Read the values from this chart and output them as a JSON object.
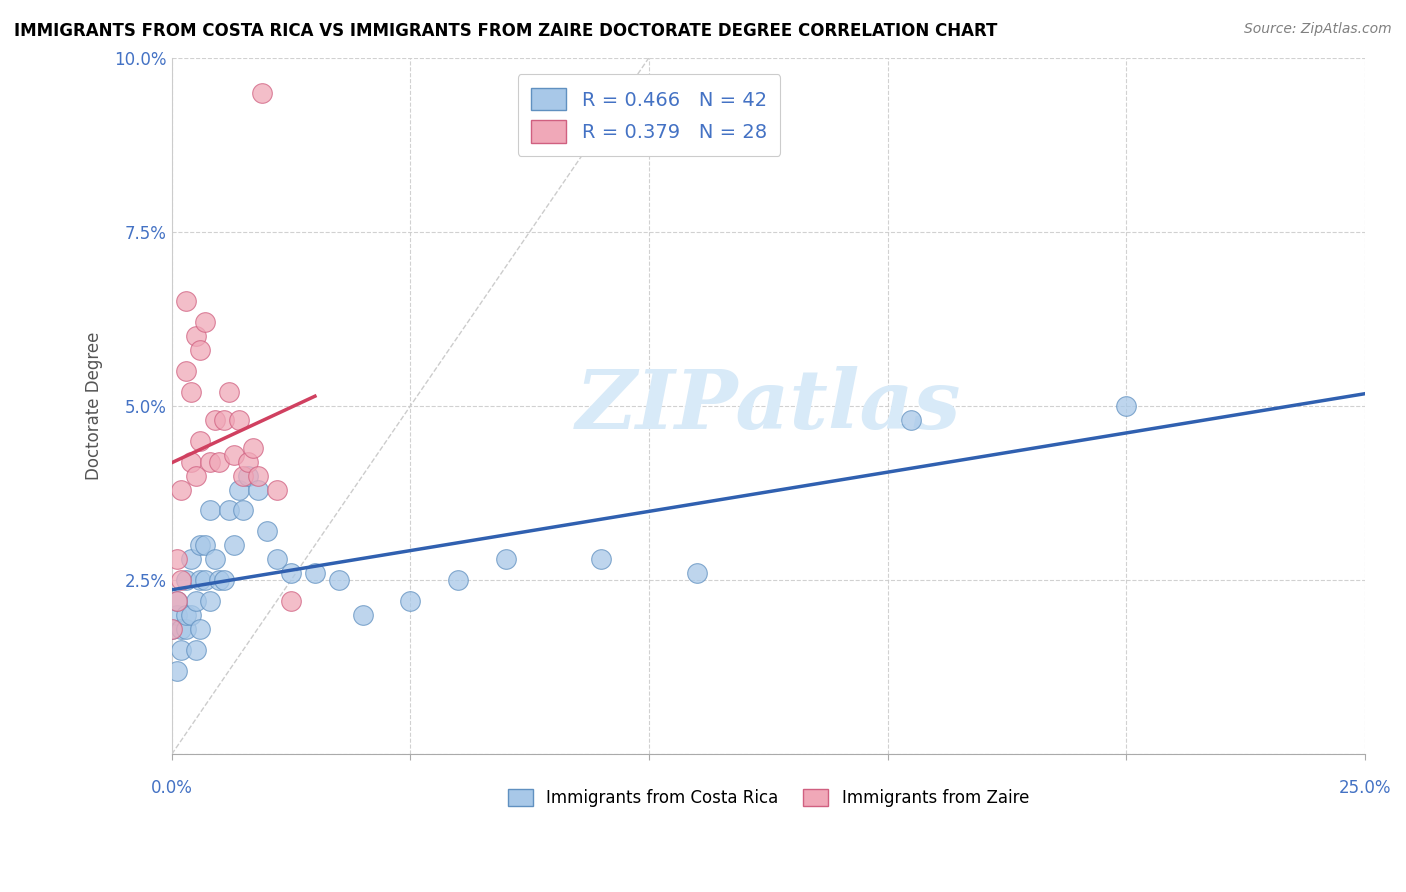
{
  "title": "IMMIGRANTS FROM COSTA RICA VS IMMIGRANTS FROM ZAIRE DOCTORATE DEGREE CORRELATION CHART",
  "source": "Source: ZipAtlas.com",
  "ylabel": "Doctorate Degree",
  "yticks": [
    0.0,
    0.025,
    0.05,
    0.075,
    0.1
  ],
  "ytick_labels": [
    "",
    "2.5%",
    "5.0%",
    "7.5%",
    "10.0%"
  ],
  "xlim": [
    0.0,
    0.25
  ],
  "ylim": [
    0.0,
    0.1
  ],
  "legend_r1": "R = 0.466",
  "legend_n1": "N = 42",
  "legend_r2": "R = 0.379",
  "legend_n2": "N = 28",
  "color_blue": "#a8c8e8",
  "color_pink": "#f0a8b8",
  "color_blue_edge": "#6090c0",
  "color_pink_edge": "#d06080",
  "trend_blue": "#3060b0",
  "trend_pink": "#d04060",
  "watermark_color": "#d8eaf8",
  "cr_x": [
    0.0,
    0.001,
    0.001,
    0.001,
    0.002,
    0.002,
    0.003,
    0.003,
    0.003,
    0.004,
    0.004,
    0.005,
    0.005,
    0.006,
    0.006,
    0.006,
    0.007,
    0.007,
    0.008,
    0.008,
    0.009,
    0.01,
    0.011,
    0.012,
    0.013,
    0.014,
    0.015,
    0.016,
    0.018,
    0.02,
    0.022,
    0.025,
    0.03,
    0.035,
    0.04,
    0.05,
    0.06,
    0.07,
    0.09,
    0.11,
    0.155,
    0.2
  ],
  "cr_y": [
    0.018,
    0.012,
    0.02,
    0.022,
    0.015,
    0.018,
    0.018,
    0.02,
    0.025,
    0.02,
    0.028,
    0.022,
    0.015,
    0.018,
    0.03,
    0.025,
    0.025,
    0.03,
    0.022,
    0.035,
    0.028,
    0.025,
    0.025,
    0.035,
    0.03,
    0.038,
    0.035,
    0.04,
    0.038,
    0.032,
    0.028,
    0.026,
    0.026,
    0.025,
    0.02,
    0.022,
    0.025,
    0.028,
    0.028,
    0.026,
    0.048,
    0.05
  ],
  "zr_x": [
    0.0,
    0.001,
    0.001,
    0.002,
    0.002,
    0.003,
    0.003,
    0.004,
    0.004,
    0.005,
    0.005,
    0.006,
    0.006,
    0.007,
    0.008,
    0.009,
    0.01,
    0.011,
    0.012,
    0.013,
    0.014,
    0.015,
    0.016,
    0.017,
    0.018,
    0.019,
    0.022,
    0.025
  ],
  "zr_y": [
    0.018,
    0.022,
    0.028,
    0.025,
    0.038,
    0.055,
    0.065,
    0.042,
    0.052,
    0.04,
    0.06,
    0.045,
    0.058,
    0.062,
    0.042,
    0.048,
    0.042,
    0.048,
    0.052,
    0.043,
    0.048,
    0.04,
    0.042,
    0.044,
    0.04,
    0.095,
    0.038,
    0.022
  ]
}
